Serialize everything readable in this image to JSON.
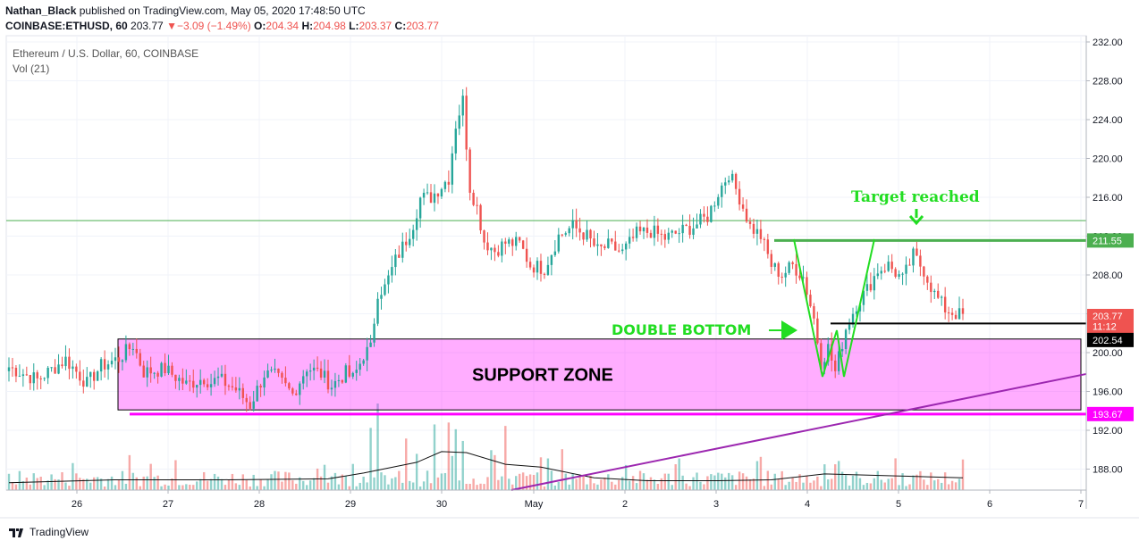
{
  "header": {
    "author": "Nathan_Black",
    "published_text": "published on TradingView.com, May 05, 2020 17:48:50 UTC",
    "symbol": "COINBASE:ETHUSD, 60",
    "last": "203.77",
    "change": "−3.09 (−1.49%)",
    "o_label": "O:",
    "o": "204.34",
    "h_label": "H:",
    "h": "204.98",
    "l_label": "L:",
    "l": "203.37",
    "c_label": "C:",
    "c": "203.77"
  },
  "legend": {
    "title": "Ethereum / U.S. Dollar, 60, COINBASE",
    "vol": "Vol (21)"
  },
  "brand": "TradingView",
  "colors": {
    "up": "#26a69a",
    "down": "#ef5350",
    "support_zone": "#ff00ff",
    "annotation_green": "#22dd22",
    "trendline": "#9c27b0",
    "resistance": "#4caf50"
  },
  "chart_data": {
    "type": "candlestick",
    "y_axis": {
      "ticks": [
        "232.00",
        "228.00",
        "224.00",
        "220.00",
        "216.00",
        "212.00",
        "208.00",
        "204.00",
        "200.00",
        "196.00",
        "192.00",
        "188.00"
      ],
      "ylim": [
        185,
        233
      ]
    },
    "x_axis": {
      "ticks": [
        "26",
        "27",
        "28",
        "29",
        "30",
        "May",
        "2",
        "3",
        "4",
        "5",
        "6",
        "7"
      ]
    },
    "price_labels": [
      {
        "value": "211.55",
        "price": 211.55,
        "color": "#4caf50"
      },
      {
        "value": "203.77",
        "price": 203.77,
        "color": "#ef5350"
      },
      {
        "value": "11:12",
        "price": 202.7,
        "color": "#ef5350"
      },
      {
        "value": "202.54",
        "price": 201.3,
        "color": "#000000"
      },
      {
        "value": "193.67",
        "price": 193.67,
        "color": "#ff00ff"
      }
    ],
    "levels": [
      {
        "name": "resistance",
        "price": 211.55
      },
      {
        "name": "neckline",
        "price": 203.0
      },
      {
        "name": "support-bottom",
        "price": 193.67
      },
      {
        "name": "thin-level",
        "price": 213.6
      }
    ],
    "support_zone": {
      "top": 201.4,
      "bottom": 194.1,
      "label": "SUPPORT ZONE"
    },
    "annotations": [
      {
        "text": "Target reached"
      },
      {
        "text": "DOUBLE BOTTOM"
      }
    ],
    "close_path": [
      [
        0,
        198.5
      ],
      [
        8,
        197.2
      ],
      [
        16,
        199.3
      ],
      [
        22,
        196.8
      ],
      [
        26,
        198.6
      ],
      [
        31,
        199.4
      ],
      [
        35,
        200.8
      ],
      [
        38,
        198.0
      ],
      [
        44,
        198.3
      ],
      [
        50,
        196.7
      ],
      [
        55,
        197.4
      ],
      [
        57,
        196.9
      ],
      [
        59,
        197.3
      ],
      [
        64,
        196.2
      ],
      [
        68,
        194.6
      ],
      [
        72,
        197.8
      ],
      [
        75,
        197.6
      ],
      [
        80,
        195.7
      ],
      [
        84,
        198.5
      ],
      [
        88,
        197.8
      ],
      [
        91,
        196.6
      ],
      [
        95,
        197.9
      ],
      [
        97,
        197.3
      ],
      [
        99,
        198.9
      ],
      [
        100,
        199.8
      ],
      [
        102,
        200.4
      ],
      [
        104,
        206.3
      ],
      [
        106,
        206.7
      ],
      [
        109,
        209.5
      ],
      [
        112,
        211.6
      ],
      [
        114,
        213.3
      ],
      [
        116,
        215.9
      ],
      [
        119,
        216.0
      ],
      [
        122,
        217.2
      ],
      [
        124,
        218.0
      ],
      [
        126,
        223.5
      ],
      [
        128,
        226.0
      ],
      [
        130,
        217.0
      ],
      [
        132,
        215.0
      ],
      [
        134,
        211.5
      ],
      [
        137,
        210.5
      ],
      [
        140,
        211.3
      ],
      [
        144,
        211.2
      ],
      [
        147,
        209.0
      ],
      [
        151,
        208.7
      ],
      [
        155,
        212.0
      ],
      [
        159,
        213.0
      ],
      [
        163,
        212.0
      ],
      [
        166,
        210.5
      ],
      [
        169,
        211.0
      ],
      [
        173,
        210.3
      ],
      [
        177,
        212.2
      ],
      [
        181,
        212.5
      ],
      [
        185,
        211.8
      ],
      [
        189,
        212.4
      ],
      [
        193,
        213.0
      ],
      [
        197,
        214.0
      ],
      [
        200,
        216.5
      ],
      [
        203,
        218.5
      ],
      [
        206,
        216.0
      ],
      [
        209,
        213.0
      ],
      [
        212,
        212.0
      ],
      [
        215,
        209.0
      ],
      [
        218,
        208.0
      ],
      [
        221,
        209.0
      ],
      [
        224,
        207.8
      ],
      [
        227,
        203.5
      ],
      [
        229,
        199.0
      ],
      [
        231,
        200.5
      ],
      [
        233,
        198.0
      ],
      [
        236,
        202.5
      ],
      [
        239,
        205.0
      ],
      [
        242,
        206.5
      ],
      [
        245,
        208.5
      ],
      [
        248,
        209.0
      ],
      [
        252,
        207.5
      ],
      [
        255,
        210.0
      ],
      [
        258,
        208.5
      ],
      [
        261,
        206.0
      ],
      [
        264,
        204.5
      ],
      [
        267,
        204.0
      ],
      [
        269,
        203.8
      ]
    ],
    "volume_ma_path": [
      [
        0,
        186.6
      ],
      [
        30,
        186.9
      ],
      [
        60,
        186.9
      ],
      [
        90,
        187.0
      ],
      [
        100,
        187.6
      ],
      [
        115,
        188.7
      ],
      [
        122,
        189.8
      ],
      [
        129,
        189.7
      ],
      [
        140,
        188.5
      ],
      [
        150,
        188.2
      ],
      [
        165,
        187.1
      ],
      [
        180,
        186.8
      ],
      [
        200,
        186.8
      ],
      [
        215,
        186.9
      ],
      [
        230,
        187.5
      ],
      [
        240,
        187.4
      ],
      [
        250,
        187.3
      ],
      [
        260,
        187.2
      ],
      [
        269,
        187.1
      ]
    ],
    "volume_bars": [
      {
        "seed": 1
      }
    ]
  }
}
